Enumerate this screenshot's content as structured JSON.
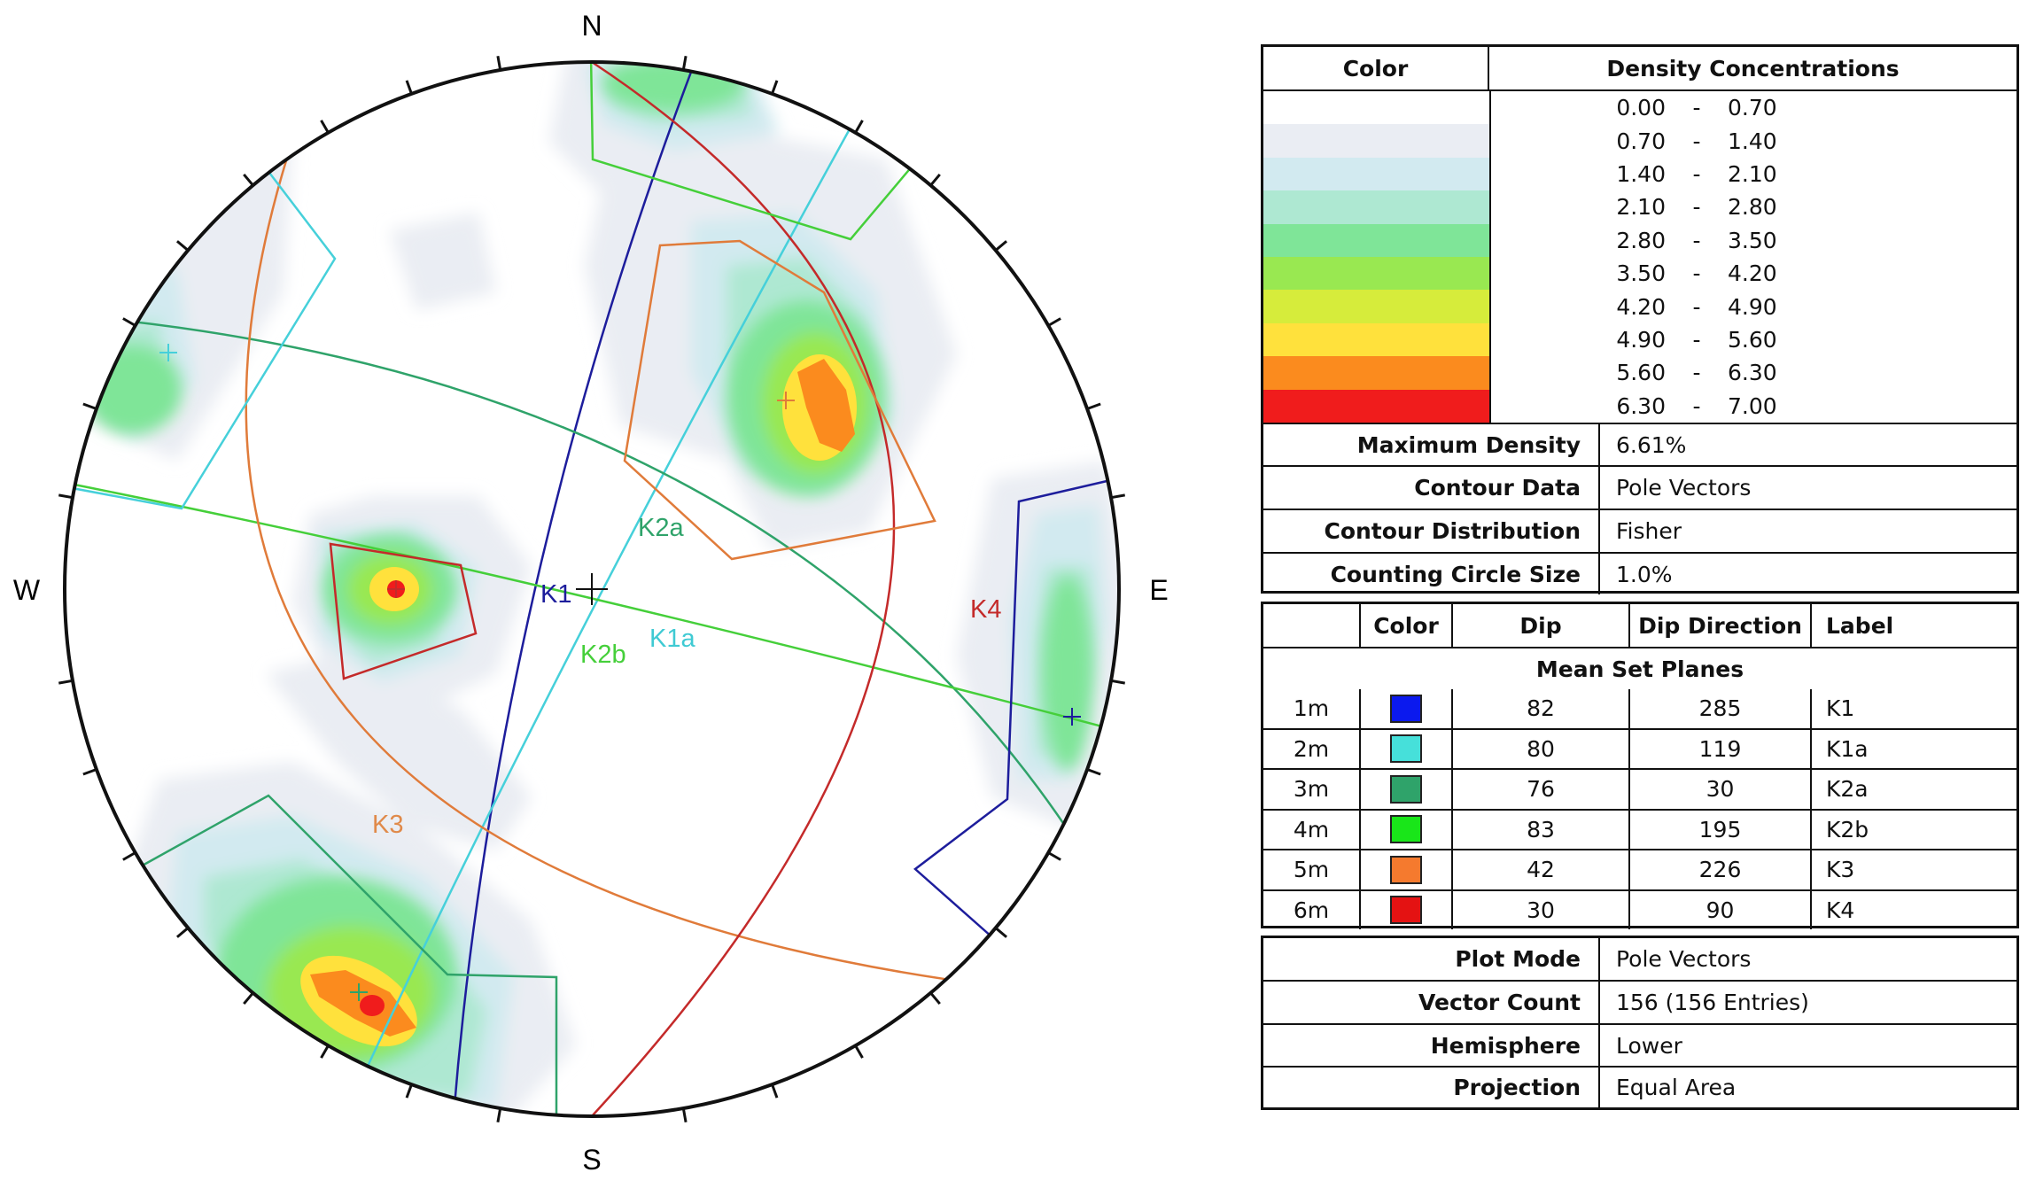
{
  "stereonet": {
    "directions": {
      "north": "N",
      "south": "S",
      "east": "E",
      "west": "W"
    },
    "window_fill": "#f5f9ff"
  },
  "density_legend": {
    "header_color": "Color",
    "header_density": "Density Concentrations",
    "bins": [
      {
        "from": "0.00",
        "sep": "-",
        "to": "0.70",
        "color": "#ffffff"
      },
      {
        "from": "0.70",
        "sep": "-",
        "to": "1.40",
        "color": "#eaedf3"
      },
      {
        "from": "1.40",
        "sep": "-",
        "to": "2.10",
        "color": "#d2eaf0"
      },
      {
        "from": "2.10",
        "sep": "-",
        "to": "2.80",
        "color": "#aee8d2"
      },
      {
        "from": "2.80",
        "sep": "-",
        "to": "3.50",
        "color": "#7fe598"
      },
      {
        "from": "3.50",
        "sep": "-",
        "to": "4.20",
        "color": "#99e851"
      },
      {
        "from": "4.20",
        "sep": "-",
        "to": "4.90",
        "color": "#d6ec3b"
      },
      {
        "from": "4.90",
        "sep": "-",
        "to": "5.60",
        "color": "#ffe13c"
      },
      {
        "from": "5.60",
        "sep": "-",
        "to": "6.30",
        "color": "#fb8b1e"
      },
      {
        "from": "6.30",
        "sep": "-",
        "to": "7.00",
        "color": "#f01c1c"
      }
    ]
  },
  "contour_info": [
    {
      "label": "Maximum Density",
      "value": "6.61%"
    },
    {
      "label": "Contour Data",
      "value": "Pole Vectors"
    },
    {
      "label": "Contour Distribution",
      "value": "Fisher"
    },
    {
      "label": "Counting Circle Size",
      "value": "1.0%"
    }
  ],
  "sets_table": {
    "headers": {
      "id": "",
      "color": "Color",
      "dip": "Dip",
      "dip_direction": "Dip Direction",
      "label": "Label"
    },
    "title": "Mean Set Planes",
    "rows": [
      {
        "id": "1m",
        "color": "#0b19ee",
        "dip": "82",
        "dip_direction": "285",
        "label": "K1"
      },
      {
        "id": "2m",
        "color": "#46e0da",
        "dip": "80",
        "dip_direction": "119",
        "label": "K1a"
      },
      {
        "id": "3m",
        "color": "#2fa36a",
        "dip": "76",
        "dip_direction": "30",
        "label": "K2a"
      },
      {
        "id": "4m",
        "color": "#19e619",
        "dip": "83",
        "dip_direction": "195",
        "label": "K2b"
      },
      {
        "id": "5m",
        "color": "#f57a2e",
        "dip": "42",
        "dip_direction": "226",
        "label": "K3"
      },
      {
        "id": "6m",
        "color": "#e41212",
        "dip": "30",
        "dip_direction": "90",
        "label": "K4"
      }
    ],
    "plane_label_colors": {
      "K1": "#1d1d9c",
      "K1a": "#3fcad3",
      "K2a": "#2fa36a",
      "K2b": "#45cf3a",
      "K3": "#e08a4a",
      "K4": "#c42a2a"
    }
  },
  "plot_info": [
    {
      "label": "Plot Mode",
      "value": "Pole Vectors"
    },
    {
      "label": "Vector Count",
      "value": "156 (156 Entries)"
    },
    {
      "label": "Hemisphere",
      "value": "Lower"
    },
    {
      "label": "Projection",
      "value": "Equal Area"
    }
  ]
}
